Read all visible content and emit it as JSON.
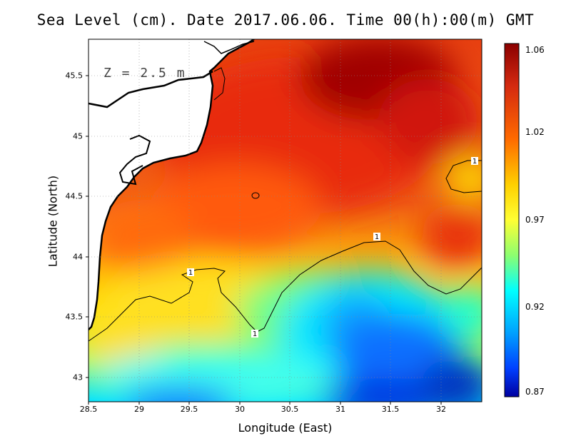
{
  "title": "Sea Level (cm). Date 2017.06.06. Time 00(h):00(m) GMT",
  "xlabel": "Longitude (East)",
  "ylabel": "Latitude (North)",
  "depth_label": "Z = 2.5 m",
  "x_ticks": [
    "28.5",
    "29",
    "29.5",
    "30",
    "30.5",
    "31",
    "31.5",
    "32"
  ],
  "y_ticks": [
    "43",
    "43.5",
    "44",
    "44.5",
    "45",
    "45.5"
  ],
  "colorbar": {
    "ticks": [
      "1.06",
      "1.02",
      "0.97",
      "0.92",
      "0.87"
    ],
    "colors": [
      "#8b0000",
      "#d42a10",
      "#ff6a00",
      "#ffd000",
      "#ffff33",
      "#8cff70",
      "#00ffff",
      "#00a0ff",
      "#0040ff",
      "#0000a0"
    ]
  },
  "contour_labels": [
    "1",
    "1",
    "1",
    "1"
  ],
  "map_extent": {
    "lon": [
      28.5,
      32.4
    ],
    "lat": [
      42.8,
      45.8
    ]
  }
}
